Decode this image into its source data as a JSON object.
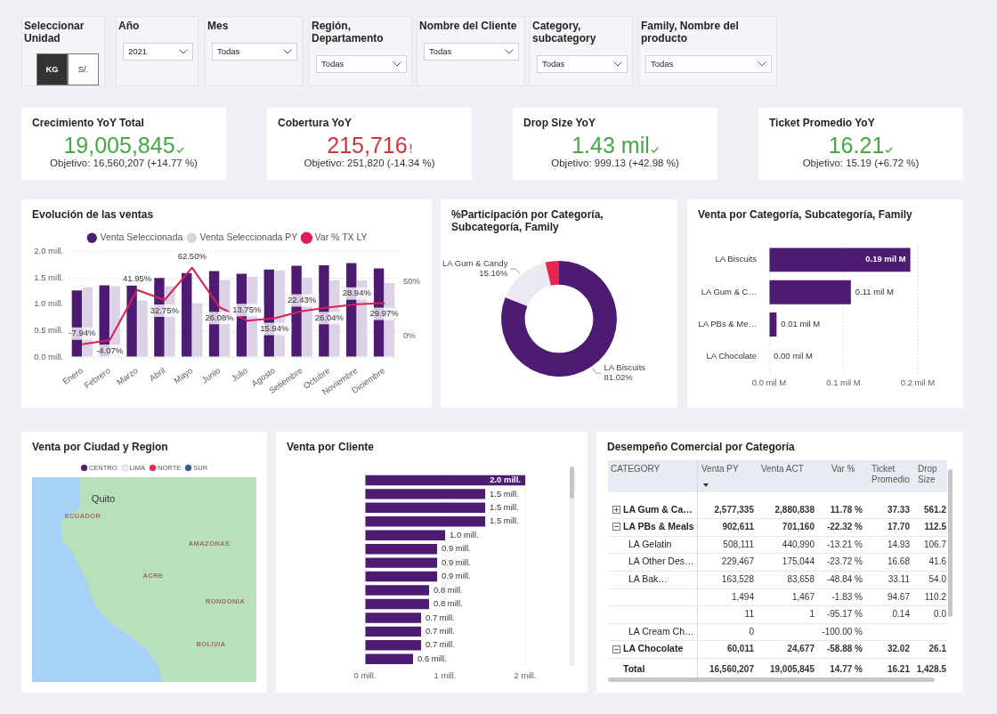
{
  "chart_data": [
    {
      "type": "other",
      "categories": [
        "Seleccionar Unidad",
        "Año",
        "Mes",
        "Región, Departamento",
        "Nombre del Cliente",
        "Category, subcategory",
        "Family, Nombre del producto"
      ],
      "value_labels": [
        null,
        "2021",
        "Todas",
        "Todas",
        "Todas",
        "Todas",
        "Todas"
      ],
      "annotations": [
        "KG",
        "S/."
      ]
    },
    {
      "type": "other",
      "title": "Crecimiento YoY Total",
      "annotations": [
        "19,005,845",
        "Objetivo: 16,560,207 (+14.77 %)"
      ],
      "color": "#43a847"
    },
    {
      "type": "other",
      "title": "Cobertura YoY",
      "annotations": [
        "215,716",
        "Objetivo: 251,820 (-14.34 %)"
      ],
      "color": "#d1343a"
    },
    {
      "type": "other",
      "title": "Drop Size YoY",
      "annotations": [
        "1.43 mil",
        "Objetivo: 999.13 (+42.98 %)"
      ],
      "color": "#43a847"
    },
    {
      "type": "other",
      "title": "Ticket Promedio YoY",
      "annotations": [
        "16.21",
        "Objetivo: 15.19 (+6.72 %)"
      ],
      "color": "#43a847"
    },
    {
      "type": "bar",
      "title": "Evolución de las ventas",
      "categories": [
        "Enero",
        "Febrero",
        "Marzo",
        "Abril",
        "Mayo",
        "Junio",
        "Julio",
        "Agosto",
        "Setiembre",
        "Octubre",
        "Noviembre",
        "Diciembre"
      ],
      "series": [
        {
          "name": "Venta Seleccionada",
          "color": "#4d1c72",
          "values": [
            1.26,
            1.36,
            1.36,
            1.5,
            1.59,
            1.63,
            1.58,
            1.66,
            1.73,
            1.74,
            1.78,
            1.68
          ]
        },
        {
          "name": "Venta Seleccionada PY",
          "color": "#dcd2e6",
          "values": [
            1.32,
            1.34,
            1.07,
            1.34,
            1.02,
            1.46,
            1.52,
            1.64,
            1.5,
            1.45,
            1.45,
            1.4
          ]
        },
        {
          "name": "Var % TX LY",
          "type": "line",
          "axis": "y2",
          "color": "#d91e5b",
          "values": [
            -7.94,
            -4.07,
            41.95,
            32.75,
            62.5,
            26.08,
            13.75,
            15.94,
            22.43,
            26.04,
            28.94,
            29.97
          ],
          "value_labels": [
            "-7.94%",
            "-4.07%",
            "41.95%",
            "32.75%",
            "62.50%",
            "26.08%",
            "13.75%",
            "15.94%",
            "22.43%",
            "26.04%",
            "28.94%",
            "29.97%"
          ]
        }
      ],
      "ylim": [
        0,
        2
      ],
      "yticks": [
        {
          "value": 0,
          "label": "0.0 mill."
        },
        {
          "value": 0.5,
          "label": "0.5 mill."
        },
        {
          "value": 1,
          "label": "1.0 mill."
        },
        {
          "value": 1.5,
          "label": "1.5 mill."
        },
        {
          "value": 2,
          "label": "2.0 mill."
        }
      ],
      "y2lim": [
        -19.7,
        77.4
      ],
      "y2ticks": [
        {
          "value": 0,
          "label": "0%"
        },
        {
          "value": 50,
          "label": "50%"
        }
      ],
      "grid": "y",
      "legend": "top",
      "marker": "none"
    },
    {
      "type": "donut",
      "title": "%Participación por Categoría, Subcategoría, Family",
      "categories": [
        "LA Biscuits",
        "LA Gum & Candy",
        null
      ],
      "values": [
        81.02,
        15.16,
        3.82
      ],
      "colors": [
        "#4d1c72",
        "#ece8f2",
        "#e8254f"
      ],
      "value_labels": [
        "81.02%",
        "15.16%",
        null
      ]
    },
    {
      "type": "bar",
      "orientation": "horizontal",
      "title": "Venta por Categoría, Subcategoría, Family",
      "categories": [
        "LA Biscuits",
        "LA Gum & C…",
        "LA PBs & Me…",
        "LA Chocolate"
      ],
      "values": [
        0.19,
        0.11,
        0.01,
        0
      ],
      "color": "#4d1c72",
      "xlim": [
        0,
        0.2
      ],
      "xticks": [
        {
          "value": 0,
          "label": "0.0 mil M"
        },
        {
          "value": 0.1,
          "label": "0.1 mil M"
        },
        {
          "value": 0.2,
          "label": "0.2 mil M"
        }
      ],
      "value_labels": [
        "0.19 mil M",
        "0.11 mil M",
        "0.01 mil M",
        "0.00 mil M"
      ],
      "grid": "x"
    },
    {
      "type": "other",
      "title": "Venta por Ciudad y Region",
      "series": [
        {
          "name": "CENTRO",
          "color": "#4d1c72"
        },
        {
          "name": "LIMA",
          "color": "#ece6f2"
        },
        {
          "name": "NORTE",
          "color": "#e8254f"
        },
        {
          "name": "SUR",
          "color": "#3d5a8e"
        }
      ],
      "legend": "top",
      "annotations": [
        "Quito",
        "ECUADOR",
        "AMAZONAS",
        "ACRE",
        "RONDONIA",
        "BOLIVIA"
      ]
    },
    {
      "type": "bar",
      "orientation": "horizontal",
      "title": "Venta por Cliente",
      "categories": [
        null,
        null,
        null,
        null,
        null,
        null,
        null,
        null,
        null,
        null,
        null,
        null,
        null,
        null
      ],
      "values": [
        2.0,
        1.5,
        1.5,
        1.5,
        1.0,
        0.9,
        0.9,
        0.9,
        0.8,
        0.8,
        0.7,
        0.7,
        0.7,
        0.6
      ],
      "color": "#4d1c72",
      "xlim": [
        0,
        2
      ],
      "xticks": [
        {
          "value": 0,
          "label": "0 mill."
        },
        {
          "value": 1,
          "label": "1 mill."
        },
        {
          "value": 2,
          "label": "2 mill."
        }
      ],
      "value_labels": [
        "2.0 mill.",
        "1.5 mill.",
        "1.5 mill.",
        "1.5 mill.",
        "1.0 mill.",
        "0.9 mill.",
        "0.9 mill.",
        "0.9 mill.",
        "0.8 mill.",
        "0.8 mill.",
        "0.7 mill.",
        "0.7 mill.",
        "0.7 mill.",
        "0.6 mill."
      ],
      "grid": "x"
    },
    {
      "type": "other",
      "title": "Desempeño Comercial por Categoría",
      "legend_title": "CATEGORY",
      "categories": [
        "Venta PY",
        "Venta ACT",
        "Var %",
        "Ticket Promedio",
        "Drop Size"
      ],
      "series": [
        {
          "name": "LA Gum & Ca…",
          "values": [
            2577335,
            2880838,
            11.78,
            37.33,
            561.2
          ],
          "value_labels": [
            "2,577,335",
            "2,880,838",
            "11.78 %",
            "37.33",
            "561.2"
          ]
        },
        {
          "name": "LA PBs & Meals",
          "values": [
            902611,
            701160,
            -22.32,
            17.7,
            112.5
          ],
          "value_labels": [
            "902,611",
            "701,160",
            "-22.32 %",
            "17.70",
            "112.5"
          ]
        },
        {
          "name": "LA Gelatin",
          "values": [
            508111,
            440990,
            -13.21,
            14.93,
            106.7
          ],
          "value_labels": [
            "508,111",
            "440,990",
            "-13.21 %",
            "14.93",
            "106.7"
          ]
        },
        {
          "name": "LA Other Des…",
          "values": [
            229467,
            175044,
            -23.72,
            16.68,
            41.6
          ],
          "value_labels": [
            "229,467",
            "175,044",
            "-23.72 %",
            "16.68",
            "41.6"
          ]
        },
        {
          "name": "LA Bak…",
          "values": [
            163528,
            83658,
            -48.84,
            33.11,
            54.0
          ],
          "value_labels": [
            "163,528",
            "83,658",
            "-48.84 %",
            "33.11",
            "54.0"
          ]
        },
        {
          "name": null,
          "values": [
            1494,
            1467,
            -1.83,
            94.67,
            110.2
          ],
          "value_labels": [
            "1,494",
            "1,467",
            "-1.83 %",
            "94.67",
            "110.2"
          ]
        },
        {
          "name": null,
          "values": [
            11,
            1,
            -95.17,
            0.14,
            0.0
          ],
          "value_labels": [
            "11",
            "1",
            "-95.17 %",
            "0.14",
            "0.0"
          ]
        },
        {
          "name": "LA Cream Ch…",
          "values": [
            0,
            null,
            -100.0,
            null,
            null
          ],
          "value_labels": [
            "0",
            null,
            "-100.00 %",
            null,
            null
          ]
        },
        {
          "name": "LA Chocolate",
          "values": [
            60011,
            24677,
            -58.88,
            32.02,
            26.1
          ],
          "value_labels": [
            "60,011",
            "24,677",
            "-58.88 %",
            "32.02",
            "26.1"
          ]
        },
        {
          "name": "Total",
          "values": [
            16560207,
            19005845,
            14.77,
            16.21,
            1428.5
          ],
          "value_labels": [
            "16,560,207",
            "19,005,845",
            "14.77 %",
            "16.21",
            "1,428.5"
          ]
        }
      ]
    }
  ]
}
